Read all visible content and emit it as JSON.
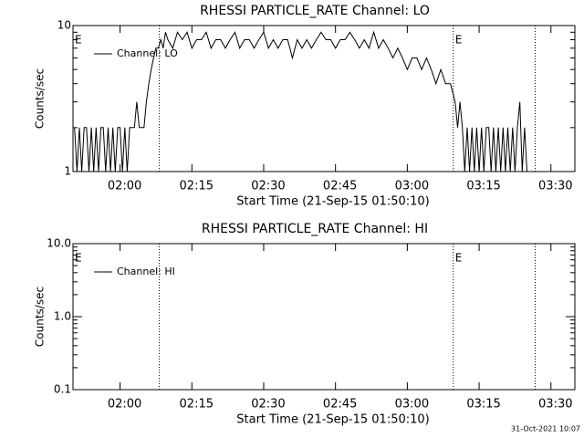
{
  "chart_data": [
    {
      "type": "line",
      "title": "RHESSI PARTICLE_RATE Channel: LO",
      "xlabel": "Start Time (21-Sep-15 01:50:10)",
      "ylabel": "Counts/sec",
      "log_y": true,
      "ylim": [
        1,
        10
      ],
      "yticks": [
        1,
        10
      ],
      "xlim": [
        110.17,
        215
      ],
      "xticks": [
        {
          "value": 120,
          "label": "02:00"
        },
        {
          "value": 135,
          "label": "02:15"
        },
        {
          "value": 150,
          "label": "02:30"
        },
        {
          "value": 165,
          "label": "02:45"
        },
        {
          "value": 180,
          "label": "03:00"
        },
        {
          "value": 195,
          "label": "03:15"
        },
        {
          "value": 210,
          "label": "03:30"
        }
      ],
      "vlines": [
        128.2,
        189.6,
        206.7
      ],
      "annotations": [
        "E",
        "E"
      ],
      "series": [
        {
          "name": "Channel: LO",
          "color": "#000000",
          "x": [
            110.5,
            111,
            111.5,
            112,
            112.5,
            113,
            113.5,
            114,
            114.5,
            115,
            115.5,
            116,
            116.5,
            117,
            117.5,
            118,
            118.5,
            119,
            119.5,
            120,
            120.5,
            121,
            121.5,
            122,
            122.5,
            123,
            123.5,
            124,
            124.5,
            125,
            125.5,
            126,
            126.5,
            127,
            127.5,
            128,
            128.5,
            129,
            129.5,
            130,
            131,
            132,
            133,
            134,
            135,
            136,
            137,
            138,
            139,
            140,
            141,
            142,
            143,
            144,
            145,
            146,
            147,
            148,
            149,
            150,
            151,
            152,
            153,
            154,
            155,
            156,
            157,
            158,
            159,
            160,
            161,
            162,
            163,
            164,
            165,
            166,
            167,
            168,
            169,
            170,
            171,
            172,
            173,
            174,
            175,
            176,
            177,
            178,
            179,
            180,
            181,
            182,
            183,
            184,
            185,
            186,
            187,
            188,
            189,
            190,
            190.5,
            191,
            191.5,
            192,
            192.5,
            193,
            193.5,
            194,
            194.5,
            195,
            195.5,
            196,
            196.5,
            197,
            197.5,
            198,
            198.5,
            199,
            199.5,
            200,
            200.5,
            201,
            201.5,
            202,
            202.5,
            203,
            203.5,
            204,
            204.5,
            205,
            205.5,
            206,
            206.5,
            207
          ],
          "values": [
            2,
            1,
            2,
            1,
            2,
            2,
            1,
            2,
            1,
            2,
            1,
            2,
            2,
            1,
            2,
            1,
            2,
            1,
            2,
            2,
            1,
            2,
            1,
            2,
            2,
            2,
            3,
            2,
            2,
            2,
            3,
            4,
            5,
            6,
            7,
            7,
            8,
            7,
            9,
            8,
            7,
            9,
            8,
            9,
            7,
            8,
            8,
            9,
            7,
            8,
            8,
            7,
            8,
            9,
            7,
            8,
            8,
            7,
            8,
            9,
            7,
            8,
            7,
            8,
            8,
            6,
            8,
            7,
            8,
            7,
            8,
            9,
            8,
            8,
            7,
            8,
            8,
            9,
            8,
            7,
            8,
            7,
            9,
            7,
            8,
            7,
            6,
            7,
            6,
            5,
            6,
            6,
            5,
            6,
            5,
            4,
            5,
            4,
            4,
            3,
            2,
            3,
            2,
            1,
            2,
            1,
            2,
            1,
            2,
            1,
            2,
            1,
            2,
            2,
            1,
            2,
            1,
            2,
            1,
            2,
            1,
            2,
            1,
            2,
            1,
            2,
            3,
            1,
            2,
            1,
            1,
            1,
            1,
            1
          ]
        }
      ]
    },
    {
      "type": "line",
      "title": "RHESSI PARTICLE_RATE Channel: HI",
      "xlabel": "Start Time (21-Sep-15 01:50:10)",
      "ylabel": "Counts/sec",
      "log_y": true,
      "ylim": [
        0.1,
        10
      ],
      "yticks": [
        0.1,
        {
          "value": 1,
          "label": "1.0"
        },
        {
          "value": 10,
          "label": "10.0"
        }
      ],
      "xlim": [
        110.17,
        215
      ],
      "xticks": [
        {
          "value": 120,
          "label": "02:00"
        },
        {
          "value": 135,
          "label": "02:15"
        },
        {
          "value": 150,
          "label": "02:30"
        },
        {
          "value": 165,
          "label": "02:45"
        },
        {
          "value": 180,
          "label": "03:00"
        },
        {
          "value": 195,
          "label": "03:15"
        },
        {
          "value": 210,
          "label": "03:30"
        }
      ],
      "vlines": [
        128.2,
        189.6,
        206.7
      ],
      "annotations": [
        "E",
        "E"
      ],
      "series": [
        {
          "name": "Channel: HI",
          "color": "#000000",
          "x": [],
          "values": []
        }
      ]
    }
  ],
  "footer": "31-Oct-2021 10:07"
}
